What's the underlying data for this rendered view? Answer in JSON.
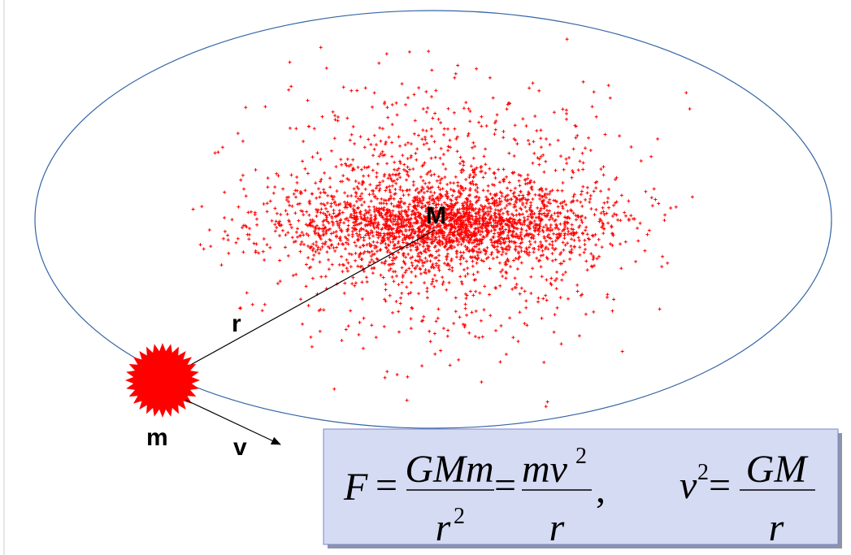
{
  "labels": {
    "central_mass": "M",
    "radius": "r",
    "orbiting_mass": "m",
    "velocity": "v"
  },
  "formula": {
    "force": "F",
    "equals": "=",
    "numerator_1": "GMm",
    "denominator_1": "r",
    "exponent_1": "2",
    "numerator_2": "mv",
    "exponent_2": "2",
    "denominator_2": "r",
    "comma": ",",
    "velocity": "v",
    "exponent_3": "2",
    "numerator_3": "GM",
    "denominator_3": "r"
  }
}
